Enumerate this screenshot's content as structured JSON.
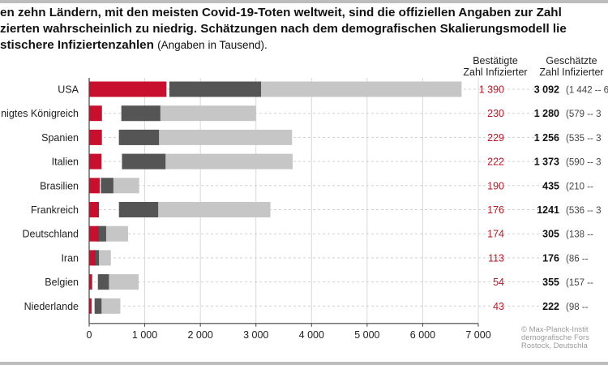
{
  "title": {
    "line1": "en zehn Ländern, mit den meisten Covid-19-Toten weltweit, sind die offiziellen Angaben zur Zahl",
    "line2": "zierten wahrscheinlich zu niedrig. Schätzungen nach dem demografischen Skalierungsmodell lie",
    "line3": "stischere Infiziertenzahlen",
    "line3_note": "(Angaben in Tausend)."
  },
  "columns": {
    "confirmed_line1": "Bestätigte",
    "confirmed_line2": "Zahl Infizierter",
    "estimated_line1": "Geschätzte",
    "estimated_line2": "Zahl Infizierter"
  },
  "credit": {
    "line1": "© Max-Planck-Instit",
    "line2": "demografische Fors",
    "line3": "Rostock, Deutschla"
  },
  "colors": {
    "confirmed": "#c8102e",
    "core": "#555555",
    "range": "#c6c6c6",
    "grid": "#d9d9d9",
    "confirmed_text": "#b01a2a"
  },
  "chart_data": {
    "type": "bar",
    "orientation": "horizontal",
    "unit": "Tausend",
    "xlim": [
      0,
      7000
    ],
    "x_ticks": [
      "0",
      "1 000",
      "2 000",
      "3 000",
      "4 000",
      "5 000",
      "6 000",
      "7 000"
    ],
    "x_tick_values": [
      0,
      1000,
      2000,
      3000,
      4000,
      5000,
      6000,
      7000
    ],
    "grid": true,
    "categories": [
      "USA",
      "nigtes Königreich",
      "Spanien",
      "Italien",
      "Brasilien",
      "Frankreich",
      "Deutschland",
      "Iran",
      "Belgien",
      "Niederlande"
    ],
    "confirmed": [
      1390,
      230,
      229,
      222,
      190,
      176,
      174,
      113,
      54,
      43
    ],
    "confirmed_labels": [
      "1 390",
      "230",
      "229",
      "222",
      "190",
      "176",
      "174",
      "113",
      "54",
      "43"
    ],
    "estimated_labels": [
      "3 092",
      "1 280",
      "1 256",
      "1 373",
      "435",
      "1241",
      "305",
      "176",
      "355",
      "222"
    ],
    "range_labels": [
      "(1 442 -- 6",
      "(579 -- 3",
      "(535 -- 3",
      "(590 -- 3",
      "(210 --",
      "(536 -- 3",
      "(138 --",
      "(86 --",
      "(157 --",
      "(98 --"
    ],
    "core_range": [
      [
        1442,
        3092
      ],
      [
        579,
        1280
      ],
      [
        535,
        1256
      ],
      [
        590,
        1373
      ],
      [
        210,
        435
      ],
      [
        536,
        1241
      ],
      [
        138,
        305
      ],
      [
        86,
        176
      ],
      [
        157,
        355
      ],
      [
        98,
        222
      ]
    ],
    "range_max": [
      6700,
      3000,
      3650,
      3660,
      900,
      3260,
      700,
      390,
      890,
      560
    ]
  }
}
